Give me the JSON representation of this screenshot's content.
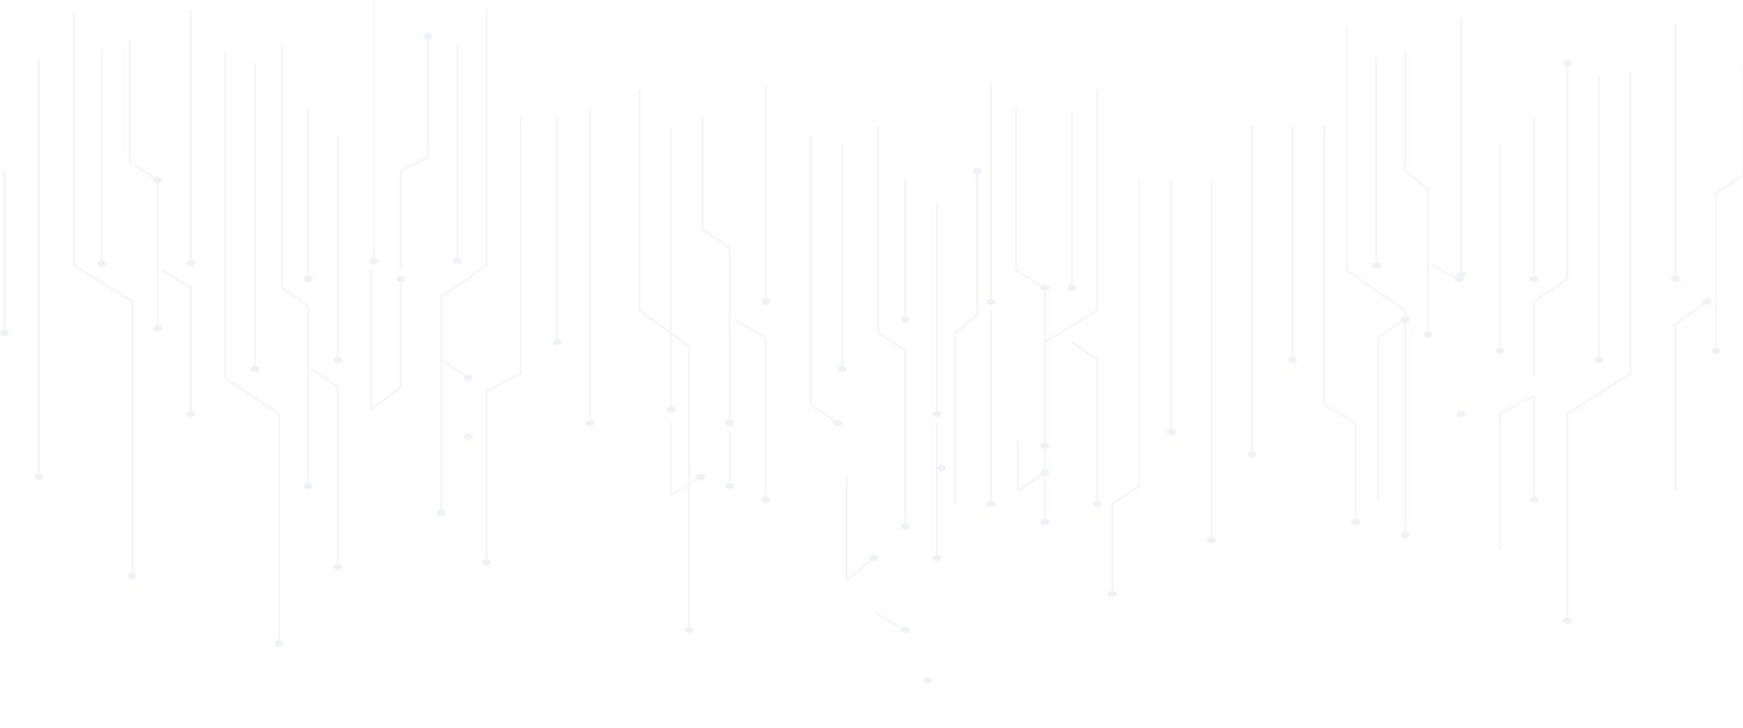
{
  "background": {
    "pattern": "circuit-traces",
    "line_color": "#f1f2f7",
    "dot_color": "#eef2f8",
    "page_color": "#ffffff"
  }
}
